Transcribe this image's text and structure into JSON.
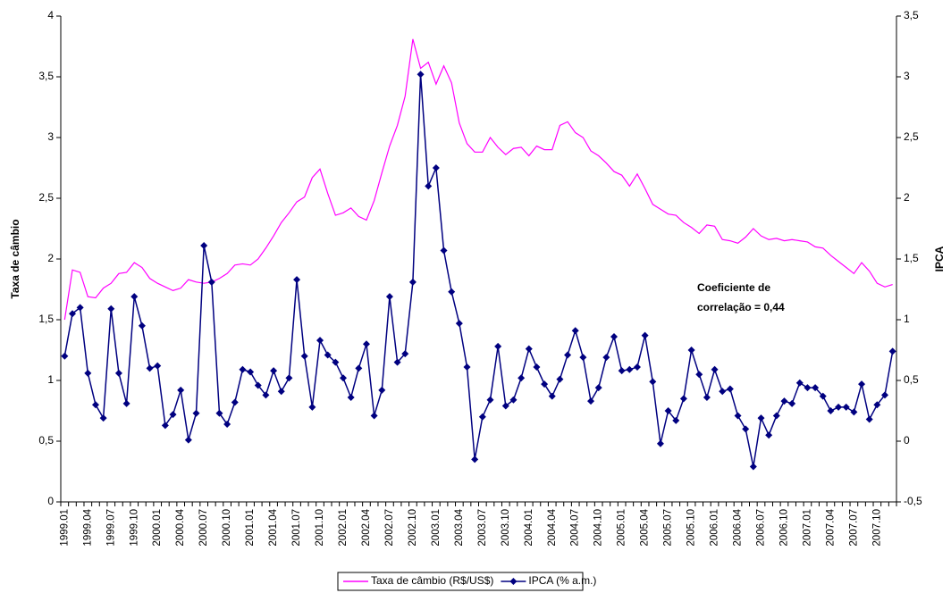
{
  "chart_data": {
    "type": "line",
    "y_label": "Taxa de câmbio",
    "y2_label": "IPCA",
    "annotation": [
      "Coeficiente de",
      "correlação = 0,44"
    ],
    "categories": [
      "1999.01",
      null,
      null,
      "1999.04",
      null,
      null,
      "1999.07",
      null,
      null,
      "1999.10",
      null,
      null,
      "2000.01",
      null,
      null,
      "2000.04",
      null,
      null,
      "2000.07",
      null,
      null,
      "2000.10",
      null,
      null,
      "2001.01",
      null,
      null,
      "2001.04",
      null,
      null,
      "2001.07",
      null,
      null,
      "2001.10",
      null,
      null,
      "2002.01",
      null,
      null,
      "2002.04",
      null,
      null,
      "2002.07",
      null,
      null,
      "2002.10",
      null,
      null,
      "2003.01",
      null,
      null,
      "2003.04",
      null,
      null,
      "2003.07",
      null,
      null,
      "2003.10",
      null,
      null,
      "2004.01",
      null,
      null,
      "2004.04",
      null,
      null,
      "2004.07",
      null,
      null,
      "2004.10",
      null,
      null,
      "2005.01",
      null,
      null,
      "2005.04",
      null,
      null,
      "2005.07",
      null,
      null,
      "2005.10",
      null,
      null,
      "2006.01",
      null,
      null,
      "2006.04",
      null,
      null,
      "2006.07",
      null,
      null,
      "2006.10",
      null,
      null,
      "2007.01",
      null,
      null,
      "2007.04",
      null,
      null,
      "2007.07",
      null,
      null,
      "2007.10",
      null,
      null
    ],
    "series": [
      {
        "name": "Taxa de câmbio (R$/US$)",
        "color": "#ff00ff",
        "marker": false,
        "values": [
          1.5,
          1.91,
          1.89,
          1.69,
          1.68,
          1.76,
          1.8,
          1.88,
          1.89,
          1.97,
          1.93,
          1.84,
          1.8,
          1.77,
          1.74,
          1.76,
          1.83,
          1.81,
          1.8,
          1.81,
          1.84,
          1.88,
          1.95,
          1.96,
          1.95,
          2.0,
          2.09,
          2.19,
          2.3,
          2.38,
          2.47,
          2.51,
          2.67,
          2.74,
          2.54,
          2.36,
          2.38,
          2.42,
          2.35,
          2.32,
          2.48,
          2.71,
          2.93,
          3.1,
          3.34,
          3.81,
          3.57,
          3.62,
          3.44,
          3.59,
          3.45,
          3.12,
          2.95,
          2.88,
          2.88,
          3.0,
          2.92,
          2.86,
          2.91,
          2.92,
          2.85,
          2.93,
          2.9,
          2.9,
          3.1,
          3.13,
          3.04,
          3.0,
          2.89,
          2.85,
          2.79,
          2.72,
          2.69,
          2.6,
          2.7,
          2.58,
          2.45,
          2.41,
          2.37,
          2.36,
          2.3,
          2.26,
          2.21,
          2.28,
          2.27,
          2.16,
          2.15,
          2.13,
          2.18,
          2.25,
          2.19,
          2.16,
          2.17,
          2.15,
          2.16,
          2.15,
          2.14,
          2.1,
          2.09,
          2.03,
          1.98,
          1.93,
          1.88,
          1.97,
          1.9,
          1.8,
          1.77,
          1.79
        ]
      },
      {
        "name": "IPCA (% a.m.)",
        "color": "#000080",
        "marker": true,
        "axis": "y2",
        "values": [
          0.7,
          1.05,
          1.1,
          0.56,
          0.3,
          0.19,
          1.09,
          0.56,
          0.31,
          1.19,
          0.95,
          0.6,
          0.62,
          0.13,
          0.22,
          0.42,
          0.01,
          0.23,
          1.61,
          1.31,
          0.23,
          0.14,
          0.32,
          0.59,
          0.57,
          0.46,
          0.38,
          0.58,
          0.41,
          0.52,
          1.33,
          0.7,
          0.28,
          0.83,
          0.71,
          0.65,
          0.52,
          0.36,
          0.6,
          0.8,
          0.21,
          0.42,
          1.19,
          0.65,
          0.72,
          1.31,
          3.02,
          2.1,
          2.25,
          1.57,
          1.23,
          0.97,
          0.61,
          -0.15,
          0.2,
          0.34,
          0.78,
          0.29,
          0.34,
          0.52,
          0.76,
          0.61,
          0.47,
          0.37,
          0.51,
          0.71,
          0.91,
          0.69,
          0.33,
          0.44,
          0.69,
          0.86,
          0.58,
          0.59,
          0.61,
          0.87,
          0.49,
          -0.02,
          0.25,
          0.17,
          0.35,
          0.75,
          0.55,
          0.36,
          0.59,
          0.41,
          0.43,
          0.21,
          0.1,
          -0.21,
          0.19,
          0.05,
          0.21,
          0.33,
          0.31,
          0.48,
          0.44,
          0.44,
          0.37,
          0.25,
          0.28,
          0.28,
          0.24,
          0.47,
          0.18,
          0.3,
          0.38,
          0.74
        ]
      }
    ],
    "ylim": [
      0,
      4
    ],
    "yticks": [
      0,
      {
        "value": 0.5,
        "label": "0,5"
      },
      1,
      {
        "value": 1.5,
        "label": "1,5"
      },
      2,
      {
        "value": 2.5,
        "label": "2,5"
      },
      3,
      {
        "value": 3.5,
        "label": "3,5"
      },
      4
    ],
    "y2lim": [
      -0.5,
      3.5
    ],
    "y2ticks": [
      {
        "value": -0.5,
        "label": "-0,5"
      },
      0,
      {
        "value": 0.5,
        "label": "0,5"
      },
      1,
      {
        "value": 1.5,
        "label": "1,5"
      },
      2,
      {
        "value": 2.5,
        "label": "2,5"
      },
      3,
      {
        "value": 3.5,
        "label": "3,5"
      }
    ],
    "legend": "bottom"
  }
}
